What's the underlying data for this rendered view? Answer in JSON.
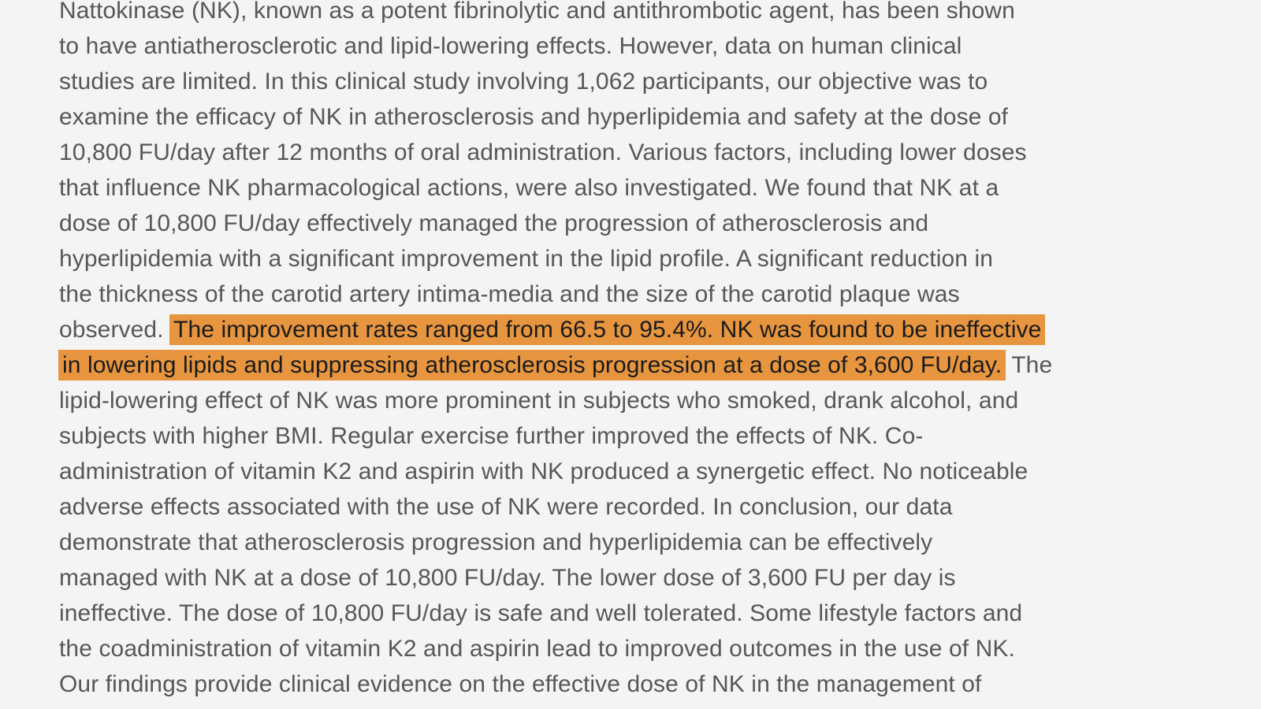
{
  "colors": {
    "page_background": "#f4f4f5",
    "body_text": "#57575a",
    "highlight_background": "#e7953f",
    "highlight_text": "#1b1b1b"
  },
  "document": {
    "highlighted_sentence": "The improvement rates ranged from 66.5 to 95.4%. NK was found to be ineffective in lowering lipids and suppressing atherosclerosis progression at a dose of 3,600 FU/day.",
    "lines": [
      {
        "segments": [
          {
            "text": "Nattokinase (NK), known as a potent fibrinolytic and antithrombotic agent, has been shown",
            "highlight": false
          }
        ]
      },
      {
        "segments": [
          {
            "text": "to have antiatherosclerotic and lipid-lowering effects. However, data on human clinical",
            "highlight": false
          }
        ]
      },
      {
        "segments": [
          {
            "text": "studies are limited. In this clinical study involving 1,062 participants, our objective was to",
            "highlight": false
          }
        ]
      },
      {
        "segments": [
          {
            "text": "examine the efficacy of NK in atherosclerosis and hyperlipidemia and safety at the dose of",
            "highlight": false
          }
        ]
      },
      {
        "segments": [
          {
            "text": "10,800 FU/day after 12 months of oral administration. Various factors, including lower doses",
            "highlight": false
          }
        ]
      },
      {
        "segments": [
          {
            "text": "that influence NK pharmacological actions, were also investigated. We found that NK at a",
            "highlight": false
          }
        ]
      },
      {
        "segments": [
          {
            "text": "dose of 10,800 FU/day effectively managed the progression of atherosclerosis and",
            "highlight": false
          }
        ]
      },
      {
        "segments": [
          {
            "text": "hyperlipidemia with a significant improvement in the lipid profile. A significant reduction in",
            "highlight": false
          }
        ]
      },
      {
        "segments": [
          {
            "text": "the thickness of the carotid artery intima-media and the size of the carotid plaque was",
            "highlight": false
          }
        ]
      },
      {
        "segments": [
          {
            "text": "observed. ",
            "highlight": false
          },
          {
            "text": "The improvement rates ranged from 66.5 to 95.4%. NK was found to be ineffective",
            "highlight": true
          }
        ]
      },
      {
        "segments": [
          {
            "text": "in lowering lipids and suppressing atherosclerosis progression at a dose of 3,600 FU/day.",
            "highlight": true
          },
          {
            "text": " The",
            "highlight": false
          }
        ]
      },
      {
        "segments": [
          {
            "text": "lipid-lowering effect of NK was more prominent in subjects who smoked, drank alcohol, and",
            "highlight": false
          }
        ]
      },
      {
        "segments": [
          {
            "text": "subjects with higher BMI. Regular exercise further improved the effects of NK. Co-",
            "highlight": false
          }
        ]
      },
      {
        "segments": [
          {
            "text": "administration of vitamin K2 and aspirin with NK produced a synergetic effect. No noticeable",
            "highlight": false
          }
        ]
      },
      {
        "segments": [
          {
            "text": "adverse effects associated with the use of NK were recorded. In conclusion, our data",
            "highlight": false
          }
        ]
      },
      {
        "segments": [
          {
            "text": "demonstrate that atherosclerosis progression and hyperlipidemia can be effectively",
            "highlight": false
          }
        ]
      },
      {
        "segments": [
          {
            "text": "managed with NK at a dose of 10,800 FU/day. The lower dose of 3,600 FU per day is",
            "highlight": false
          }
        ]
      },
      {
        "segments": [
          {
            "text": "ineffective. The dose of 10,800 FU/day is safe and well tolerated. Some lifestyle factors and",
            "highlight": false
          }
        ]
      },
      {
        "segments": [
          {
            "text": "the coadministration of vitamin K2 and aspirin lead to improved outcomes in the use of NK.",
            "highlight": false
          }
        ]
      },
      {
        "segments": [
          {
            "text": "Our findings provide clinical evidence on the effective dose of NK in the management of",
            "highlight": false
          }
        ]
      }
    ]
  }
}
